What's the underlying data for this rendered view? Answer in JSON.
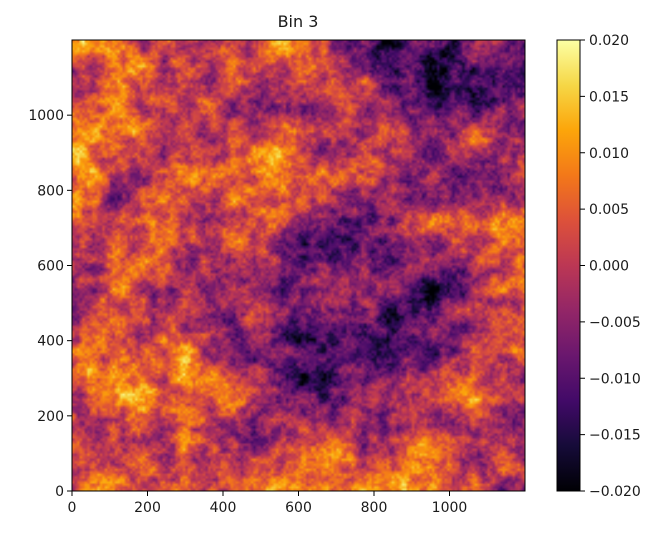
{
  "chart_data": {
    "type": "heatmap",
    "title": "Bin 3",
    "xlabel": "",
    "ylabel": "",
    "xlim": [
      0,
      1200
    ],
    "ylim": [
      0,
      1200
    ],
    "x_ticks": [
      0,
      200,
      400,
      600,
      800,
      1000
    ],
    "y_ticks": [
      0,
      200,
      400,
      600,
      800,
      1000
    ],
    "x_tick_labels": [
      "0",
      "200",
      "400",
      "600",
      "800",
      "1000"
    ],
    "y_tick_labels": [
      "0",
      "200",
      "400",
      "600",
      "800",
      "1000"
    ],
    "colorbar": {
      "colormap": "inferno",
      "vmin": -0.02,
      "vmax": 0.02,
      "ticks": [
        -0.02,
        -0.015,
        -0.01,
        -0.005,
        0.0,
        0.005,
        0.01,
        0.015,
        0.02
      ],
      "tick_labels": [
        "−0.020",
        "−0.015",
        "−0.010",
        "−0.005",
        "0.000",
        "0.005",
        "0.010",
        "0.015",
        "0.020"
      ]
    },
    "grid": false
  }
}
